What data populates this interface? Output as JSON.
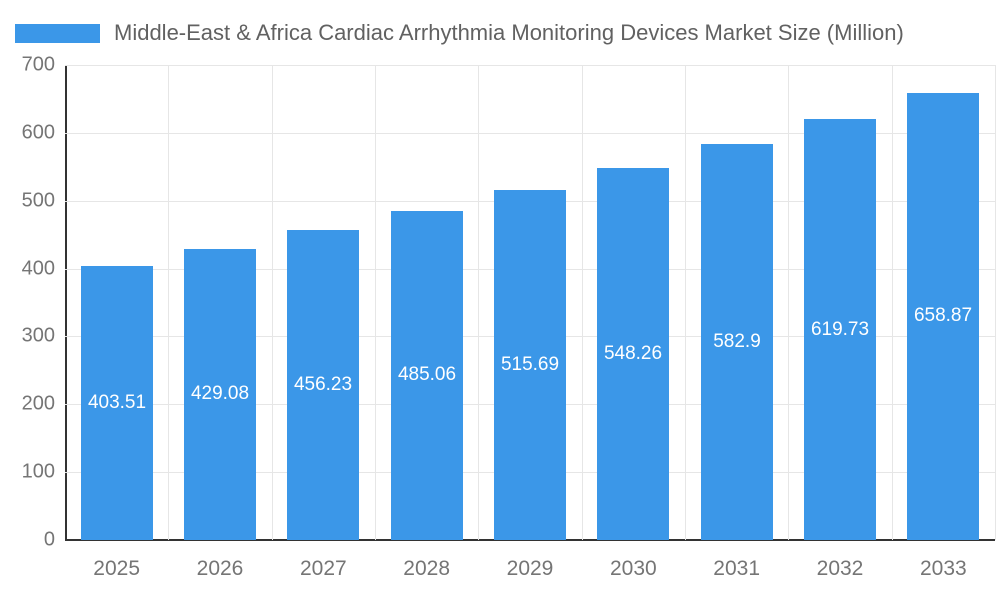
{
  "chart_data": {
    "type": "bar",
    "title": "Middle-East & Africa Cardiac Arrhythmia Monitoring Devices Market Size (Million)",
    "categories": [
      "2025",
      "2026",
      "2027",
      "2028",
      "2029",
      "2030",
      "2031",
      "2032",
      "2033"
    ],
    "values": [
      403.51,
      429.08,
      456.23,
      485.06,
      515.69,
      548.26,
      582.9,
      619.73,
      658.87
    ],
    "value_labels": [
      "403.51",
      "429.08",
      "456.23",
      "485.06",
      "515.69",
      "548.26",
      "582.9",
      "619.73",
      "658.87"
    ],
    "ylabel": "",
    "xlabel": "",
    "ylim": [
      0,
      700
    ],
    "yticks": [
      0,
      100,
      200,
      300,
      400,
      500,
      600,
      700
    ],
    "grid": true,
    "legend_position": "top-left",
    "colors": {
      "bar": "#3b97e8",
      "bar_label": "#ffffff",
      "axis_text": "#757575",
      "title_text": "#616161",
      "gridline": "#e6e6e6",
      "axis_line": "#333333"
    }
  }
}
